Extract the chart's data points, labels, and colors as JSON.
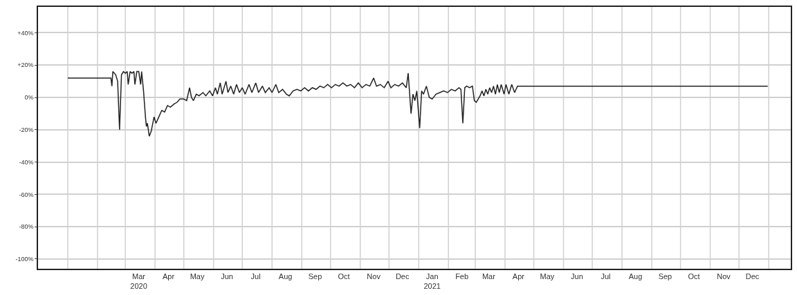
{
  "chart_data": {
    "type": "line",
    "line_style": "solid",
    "marker": "none",
    "grid": true,
    "legend": false,
    "xlim": [
      "2019-12-01",
      "2022-01-24"
    ],
    "xticks": [
      {
        "value": "2020-01-01",
        "label": null
      },
      {
        "value": "2020-02-01",
        "label": null
      },
      {
        "value": "2020-03-01",
        "label": null
      },
      {
        "value": "2020-04-01",
        "label": null
      },
      {
        "value": "2020-05-01",
        "label": null
      },
      {
        "value": "2020-06-01",
        "label": null
      },
      {
        "value": "2020-07-01",
        "label": null
      },
      {
        "value": "2020-08-01",
        "label": null
      },
      {
        "value": "2020-09-01",
        "label": null
      },
      {
        "value": "2020-10-01",
        "label": null
      },
      {
        "value": "2020-11-01",
        "label": null
      },
      {
        "value": "2020-12-01",
        "label": null
      },
      {
        "value": "2021-01-01",
        "label": null
      },
      {
        "value": "2021-02-01",
        "label": null
      },
      {
        "value": "2021-03-01",
        "label": null
      },
      {
        "value": "2021-04-01",
        "label": null
      },
      {
        "value": "2021-05-01",
        "label": null
      },
      {
        "value": "2021-06-01",
        "label": null
      },
      {
        "value": "2021-07-01",
        "label": null
      },
      {
        "value": "2021-08-01",
        "label": null
      },
      {
        "value": "2021-09-01",
        "label": null
      },
      {
        "value": "2021-10-01",
        "label": null
      },
      {
        "value": "2021-11-01",
        "label": null
      },
      {
        "value": "2021-12-01",
        "label": null
      },
      {
        "value": "2022-01-01",
        "label": null
      },
      {
        "value": "2020-03-15",
        "label": "Mar\n2020"
      },
      {
        "value": "2020-04-15",
        "label": "Apr"
      },
      {
        "value": "2020-05-15",
        "label": "May"
      },
      {
        "value": "2020-06-15",
        "label": "Jun"
      },
      {
        "value": "2020-07-15",
        "label": "Jul"
      },
      {
        "value": "2020-08-15",
        "label": "Aug"
      },
      {
        "value": "2020-09-15",
        "label": "Sep"
      },
      {
        "value": "2020-10-15",
        "label": "Oct"
      },
      {
        "value": "2020-11-15",
        "label": "Nov"
      },
      {
        "value": "2020-12-15",
        "label": "Dec"
      },
      {
        "value": "2021-01-15",
        "label": "Jan\n2021"
      },
      {
        "value": "2021-02-15",
        "label": "Feb"
      },
      {
        "value": "2021-03-15",
        "label": "Mar"
      },
      {
        "value": "2021-04-15",
        "label": "Apr"
      },
      {
        "value": "2021-05-15",
        "label": "May"
      },
      {
        "value": "2021-06-15",
        "label": "Jun"
      },
      {
        "value": "2021-07-15",
        "label": "Jul"
      },
      {
        "value": "2021-08-15",
        "label": "Aug"
      },
      {
        "value": "2021-09-15",
        "label": "Sep"
      },
      {
        "value": "2021-10-15",
        "label": "Oct"
      },
      {
        "value": "2021-11-15",
        "label": "Nov"
      },
      {
        "value": "2021-12-15",
        "label": "Dec"
      }
    ],
    "ylim": [
      -106,
      56
    ],
    "yticks": [
      {
        "value": 40,
        "label": "+40%"
      },
      {
        "value": 20,
        "label": "+20%"
      },
      {
        "value": 0,
        "label": "0%"
      },
      {
        "value": -20,
        "label": "-20%"
      },
      {
        "value": -40,
        "label": "-40%"
      },
      {
        "value": -60,
        "label": "-60%"
      },
      {
        "value": -80,
        "label": "-80%"
      },
      {
        "value": -100,
        "label": "-100%"
      }
    ],
    "series": [
      {
        "color": "#222222",
        "x": [
          "2020-01-01",
          "2020-02-15",
          "2020-02-16",
          "2020-02-17",
          "2020-02-20",
          "2020-02-22",
          "2020-02-24",
          "2020-02-26",
          "2020-02-28",
          "2020-03-01",
          "2020-03-03",
          "2020-03-04",
          "2020-03-06",
          "2020-03-08",
          "2020-03-10",
          "2020-03-11",
          "2020-03-13",
          "2020-03-15",
          "2020-03-17",
          "2020-03-18",
          "2020-03-20",
          "2020-03-22",
          "2020-03-23",
          "2020-03-24",
          "2020-03-26",
          "2020-03-28",
          "2020-03-31",
          "2020-04-02",
          "2020-04-05",
          "2020-04-08",
          "2020-04-11",
          "2020-04-14",
          "2020-04-17",
          "2020-04-21",
          "2020-04-24",
          "2020-04-27",
          "2020-05-01",
          "2020-05-04",
          "2020-05-07",
          "2020-05-09",
          "2020-05-11",
          "2020-05-14",
          "2020-05-17",
          "2020-05-21",
          "2020-05-24",
          "2020-05-28",
          "2020-05-31",
          "2020-06-03",
          "2020-06-05",
          "2020-06-08",
          "2020-06-10",
          "2020-06-14",
          "2020-06-16",
          "2020-06-19",
          "2020-06-22",
          "2020-06-25",
          "2020-06-28",
          "2020-07-01",
          "2020-07-04",
          "2020-07-08",
          "2020-07-11",
          "2020-07-15",
          "2020-07-18",
          "2020-07-22",
          "2020-07-25",
          "2020-07-29",
          "2020-08-01",
          "2020-08-05",
          "2020-08-08",
          "2020-08-12",
          "2020-08-16",
          "2020-08-19",
          "2020-08-23",
          "2020-08-27",
          "2020-08-31",
          "2020-09-04",
          "2020-09-08",
          "2020-09-12",
          "2020-09-16",
          "2020-09-20",
          "2020-09-24",
          "2020-09-28",
          "2020-10-02",
          "2020-10-06",
          "2020-10-10",
          "2020-10-14",
          "2020-10-18",
          "2020-10-22",
          "2020-10-26",
          "2020-10-30",
          "2020-11-03",
          "2020-11-07",
          "2020-11-11",
          "2020-11-15",
          "2020-11-18",
          "2020-11-22",
          "2020-11-26",
          "2020-11-30",
          "2020-12-03",
          "2020-12-07",
          "2020-12-11",
          "2020-12-15",
          "2020-12-19",
          "2020-12-21",
          "2020-12-24",
          "2020-12-26",
          "2020-12-28",
          "2020-12-30",
          "2021-01-02",
          "2021-01-04",
          "2021-01-06",
          "2021-01-09",
          "2021-01-12",
          "2021-01-15",
          "2021-01-19",
          "2021-01-23",
          "2021-01-27",
          "2021-01-31",
          "2021-02-04",
          "2021-02-08",
          "2021-02-12",
          "2021-02-14",
          "2021-02-16",
          "2021-02-18",
          "2021-02-20",
          "2021-02-23",
          "2021-02-26",
          "2021-02-28",
          "2021-03-02",
          "2021-03-04",
          "2021-03-06",
          "2021-03-08",
          "2021-03-10",
          "2021-03-12",
          "2021-03-14",
          "2021-03-16",
          "2021-03-18",
          "2021-03-20",
          "2021-03-22",
          "2021-03-24",
          "2021-03-26",
          "2021-03-28",
          "2021-03-31",
          "2021-04-02",
          "2021-04-05",
          "2021-04-08",
          "2021-04-11",
          "2021-04-14",
          "2021-12-31"
        ],
        "values": [
          12,
          12,
          7,
          16,
          14,
          10,
          -20,
          14,
          16,
          15,
          16,
          8,
          16,
          15,
          16,
          8,
          16,
          16,
          8,
          16,
          4,
          -12,
          -18,
          -16,
          -24,
          -21,
          -12,
          -16,
          -12,
          -8,
          -9,
          -5,
          -6,
          -4,
          -3,
          -1,
          -1,
          -2,
          6,
          0,
          -2,
          2,
          1,
          3,
          1,
          4,
          1,
          6,
          2,
          9,
          2,
          10,
          3,
          7,
          2,
          8,
          3,
          6,
          2,
          8,
          3,
          9,
          3,
          7,
          3,
          6,
          3,
          8,
          3,
          5,
          2,
          1,
          4,
          5,
          4,
          6,
          4,
          6,
          5,
          7,
          6,
          8,
          6,
          8,
          7,
          9,
          7,
          8,
          6,
          9,
          6,
          8,
          7,
          12,
          7,
          8,
          6,
          10,
          6,
          8,
          7,
          9,
          6,
          15,
          -10,
          2,
          -2,
          4,
          -19,
          4,
          2,
          7,
          0,
          -1,
          2,
          3,
          4,
          3,
          5,
          4,
          6,
          5,
          -16,
          6,
          7,
          6,
          7,
          -2,
          -3,
          -1,
          1,
          4,
          1,
          5,
          2,
          6,
          3,
          7,
          2,
          8,
          3,
          8,
          2,
          8,
          2,
          8,
          3,
          7,
          7
        ]
      }
    ]
  }
}
